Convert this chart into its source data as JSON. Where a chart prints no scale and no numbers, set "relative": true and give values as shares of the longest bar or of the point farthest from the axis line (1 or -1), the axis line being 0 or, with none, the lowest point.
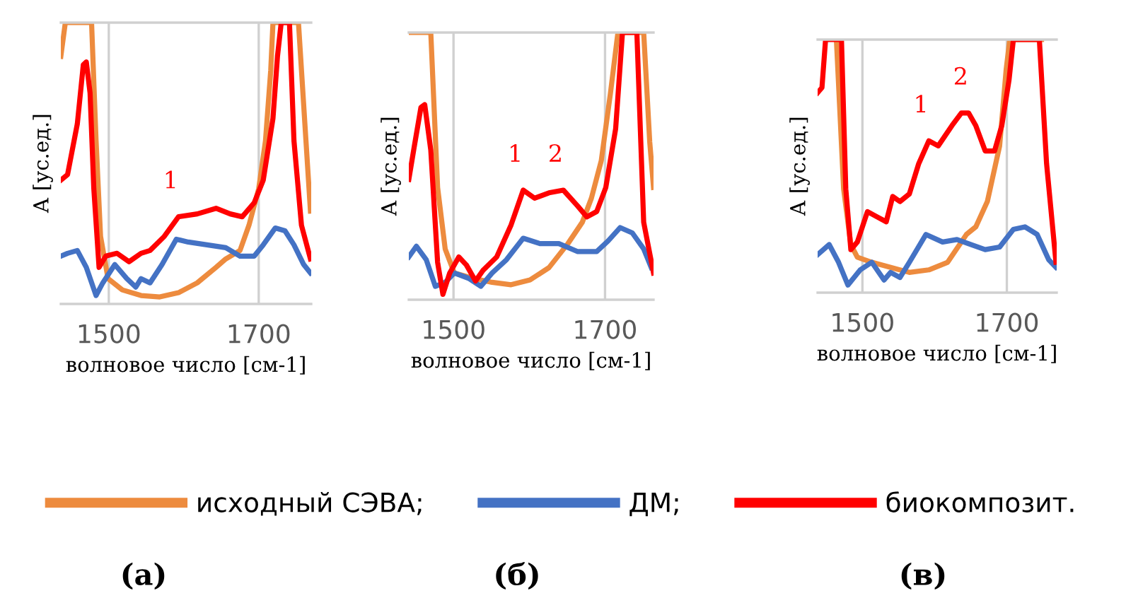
{
  "chart_data": [
    {
      "type": "line",
      "title": "(а)",
      "xlabel": "волновое число [см-1]",
      "ylabel": "А [ус.ед.]",
      "relative": true,
      "xlim": [
        1436,
        1770
      ],
      "xticks": [
        1500,
        1700
      ],
      "grid": "x",
      "legend": "bottom",
      "annotations": [
        {
          "text": "1",
          "x": 1593,
          "y": 0.31
        }
      ],
      "series": [
        {
          "name": "исходный СЭВА;",
          "color": "#ed8b3e",
          "x": [
            1436,
            1442,
            1477,
            1483,
            1489,
            1499,
            1518,
            1543,
            1568,
            1593,
            1618,
            1643,
            1656,
            1675,
            1687,
            1700,
            1709,
            1716,
            1719,
            1753,
            1763,
            1769
          ],
          "values": [
            0.88,
            1.0,
            1.0,
            0.58,
            0.24,
            0.09,
            0.05,
            0.03,
            0.025,
            0.04,
            0.075,
            0.13,
            0.16,
            0.19,
            0.28,
            0.41,
            0.58,
            0.83,
            1.0,
            1.0,
            0.58,
            0.33
          ]
        },
        {
          "name": "ДМ;",
          "color": "#4472c4",
          "x": [
            1436,
            1445,
            1458,
            1470,
            1483,
            1492,
            1508,
            1524,
            1536,
            1543,
            1555,
            1571,
            1590,
            1606,
            1631,
            1656,
            1675,
            1694,
            1706,
            1722,
            1735,
            1747,
            1760,
            1769
          ],
          "values": [
            0.17,
            0.18,
            0.19,
            0.13,
            0.03,
            0.075,
            0.14,
            0.09,
            0.06,
            0.09,
            0.075,
            0.14,
            0.23,
            0.22,
            0.21,
            0.2,
            0.17,
            0.17,
            0.21,
            0.27,
            0.26,
            0.21,
            0.14,
            0.11
          ]
        },
        {
          "name": "биокомпозит.",
          "color": "#ff0000",
          "x": [
            1436,
            1445,
            1458,
            1466,
            1470,
            1475,
            1480,
            1487,
            1496,
            1511,
            1527,
            1543,
            1555,
            1574,
            1593,
            1618,
            1643,
            1662,
            1678,
            1694,
            1706,
            1719,
            1725,
            1730,
            1741,
            1747,
            1757,
            1769
          ],
          "values": [
            0.44,
            0.46,
            0.64,
            0.85,
            0.86,
            0.75,
            0.41,
            0.13,
            0.17,
            0.18,
            0.15,
            0.18,
            0.19,
            0.24,
            0.31,
            0.32,
            0.34,
            0.32,
            0.31,
            0.36,
            0.44,
            0.66,
            0.88,
            1.0,
            1.0,
            0.58,
            0.28,
            0.16
          ]
        }
      ]
    },
    {
      "type": "line",
      "title": "(б)",
      "xlabel": "волновое число [см-1]",
      "ylabel": "А [ус.ед.]",
      "relative": true,
      "xlim": [
        1441,
        1764
      ],
      "xticks": [
        1500,
        1700
      ],
      "grid": "x",
      "annotations": [
        {
          "text": "1",
          "x": 1592,
          "y": 0.41
        },
        {
          "text": "2",
          "x": 1645,
          "y": 0.41
        }
      ],
      "series": [
        {
          "color": "#ed8b3e",
          "x": [
            1441,
            1470,
            1479,
            1489,
            1501,
            1526,
            1551,
            1576,
            1601,
            1626,
            1651,
            1670,
            1682,
            1695,
            1707,
            1717,
            1751,
            1759,
            1764
          ],
          "values": [
            1.0,
            1.0,
            0.42,
            0.19,
            0.1,
            0.08,
            0.065,
            0.056,
            0.074,
            0.12,
            0.21,
            0.29,
            0.38,
            0.52,
            0.77,
            1.0,
            1.0,
            0.59,
            0.42
          ]
        },
        {
          "color": "#4472c4",
          "x": [
            1441,
            1451,
            1464,
            1476,
            1489,
            1501,
            1520,
            1536,
            1551,
            1570,
            1592,
            1614,
            1639,
            1664,
            1689,
            1704,
            1720,
            1736,
            1751,
            1761
          ],
          "values": [
            0.16,
            0.2,
            0.15,
            0.05,
            0.065,
            0.1,
            0.08,
            0.05,
            0.1,
            0.15,
            0.23,
            0.21,
            0.21,
            0.18,
            0.18,
            0.22,
            0.27,
            0.25,
            0.19,
            0.12
          ]
        },
        {
          "color": "#ff0000",
          "x": [
            1441,
            1448,
            1457,
            1462,
            1470,
            1479,
            1486,
            1495,
            1507,
            1517,
            1529,
            1539,
            1557,
            1576,
            1592,
            1607,
            1626,
            1645,
            1664,
            1676,
            1689,
            1701,
            1714,
            1723,
            1742,
            1751,
            1764
          ],
          "values": [
            0.45,
            0.57,
            0.72,
            0.73,
            0.56,
            0.14,
            0.02,
            0.1,
            0.16,
            0.13,
            0.07,
            0.11,
            0.16,
            0.28,
            0.41,
            0.38,
            0.4,
            0.41,
            0.35,
            0.31,
            0.33,
            0.42,
            0.64,
            1.0,
            1.0,
            0.29,
            0.1
          ]
        }
      ]
    },
    {
      "type": "line",
      "title": "(в)",
      "xlabel": "волновое число [см-1]",
      "ylabel": "А [ус.ед.]",
      "relative": true,
      "xlim": [
        1438,
        1769
      ],
      "xticks": [
        1500,
        1700
      ],
      "grid": "x",
      "annotations": [
        {
          "text": "1",
          "x": 1592,
          "y": 0.6
        },
        {
          "text": "2",
          "x": 1647,
          "y": 0.71
        }
      ],
      "series": [
        {
          "color": "#ed8b3e",
          "x": [
            1464,
            1474,
            1484,
            1493,
            1513,
            1539,
            1565,
            1592,
            1618,
            1644,
            1657,
            1673,
            1690,
            1699,
            1704,
            1748
          ],
          "values": [
            1.0,
            0.41,
            0.19,
            0.14,
            0.12,
            0.1,
            0.08,
            0.09,
            0.12,
            0.23,
            0.26,
            0.36,
            0.58,
            0.88,
            1.0,
            1.0
          ]
        },
        {
          "color": "#4472c4",
          "x": [
            1438,
            1454,
            1467,
            1480,
            1497,
            1513,
            1530,
            1539,
            1552,
            1565,
            1588,
            1611,
            1631,
            1650,
            1670,
            1690,
            1709,
            1725,
            1742,
            1758,
            1768
          ],
          "values": [
            0.15,
            0.19,
            0.12,
            0.03,
            0.09,
            0.12,
            0.05,
            0.08,
            0.06,
            0.12,
            0.23,
            0.2,
            0.21,
            0.19,
            0.17,
            0.18,
            0.25,
            0.26,
            0.23,
            0.13,
            0.1
          ]
        },
        {
          "color": "#ff0000",
          "x": [
            1438,
            1444,
            1449,
            1471,
            1477,
            1484,
            1493,
            1507,
            1520,
            1533,
            1542,
            1552,
            1565,
            1578,
            1592,
            1605,
            1624,
            1637,
            1647,
            1657,
            1670,
            1683,
            1693,
            1703,
            1709,
            1745,
            1755,
            1768
          ],
          "values": [
            0.79,
            0.81,
            1.0,
            1.0,
            0.41,
            0.17,
            0.2,
            0.32,
            0.3,
            0.28,
            0.38,
            0.36,
            0.39,
            0.51,
            0.6,
            0.58,
            0.66,
            0.71,
            0.71,
            0.66,
            0.56,
            0.56,
            0.66,
            0.84,
            1.0,
            1.0,
            0.51,
            0.12
          ]
        }
      ]
    }
  ]
}
